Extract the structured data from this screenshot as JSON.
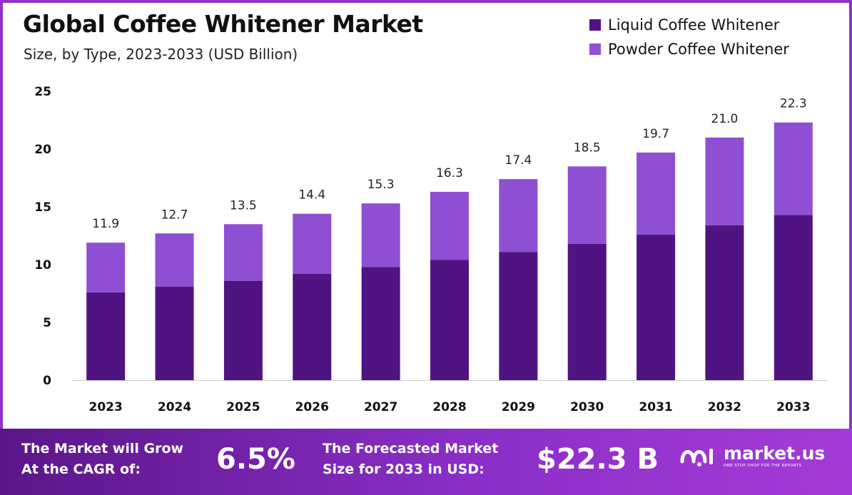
{
  "header": {
    "title": "Global Coffee Whitener Market",
    "subtitle": "Size, by Type, 2023-2033 (USD Billion)"
  },
  "legend": [
    {
      "label": "Liquid Coffee Whitener",
      "color": "#4f1382"
    },
    {
      "label": "Powder Coffee Whitener",
      "color": "#8e4fd3"
    }
  ],
  "chart_data": {
    "type": "bar",
    "stacked": true,
    "categories": [
      "2023",
      "2024",
      "2025",
      "2026",
      "2027",
      "2028",
      "2029",
      "2030",
      "2031",
      "2032",
      "2033"
    ],
    "series": [
      {
        "name": "Liquid Coffee Whitener",
        "color": "#4f1382",
        "values": [
          7.6,
          8.1,
          8.6,
          9.2,
          9.8,
          10.4,
          11.1,
          11.8,
          12.6,
          13.4,
          14.3
        ]
      },
      {
        "name": "Powder Coffee Whitener",
        "color": "#8e4fd3",
        "values": [
          4.3,
          4.6,
          4.9,
          5.2,
          5.5,
          5.9,
          6.3,
          6.7,
          7.1,
          7.6,
          8.0
        ]
      }
    ],
    "totals": [
      "11.9",
      "12.7",
      "13.5",
      "14.4",
      "15.3",
      "16.3",
      "17.4",
      "18.5",
      "19.7",
      "21.0",
      "22.3"
    ],
    "yticks": [
      "0",
      "5",
      "10",
      "15",
      "20",
      "25"
    ],
    "ylim": [
      0,
      25
    ],
    "grid": false,
    "legend_position": "top-right"
  },
  "footer": {
    "cagr_text_line1": "The Market will Grow",
    "cagr_text_line2": "At the CAGR of:",
    "cagr_value": "6.5%",
    "forecast_text_line1": "The Forecasted Market",
    "forecast_text_line2": "Size for 2033 in USD:",
    "forecast_value": "$22.3 B",
    "brand_name": "market.us",
    "brand_tagline": "ONE STOP SHOP FOR THE REPORTS",
    "brand_icon": "market-us-logo-icon"
  }
}
